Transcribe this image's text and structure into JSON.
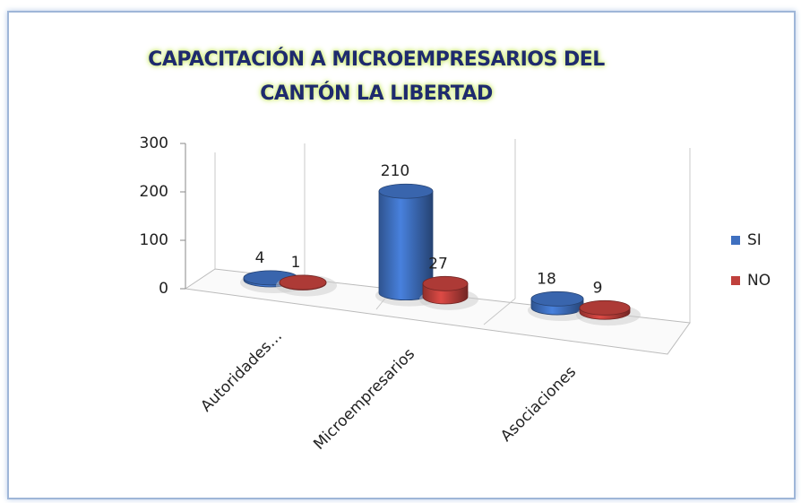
{
  "chart_data": {
    "type": "bar3d",
    "title": "CAPACITACIÓN A MICROEMPRESARIOS DEL CANTÓN LA LIBERTAD",
    "categories": [
      "Autoridades…",
      "Microempresarios",
      "Asociaciones"
    ],
    "series": [
      {
        "name": "SI",
        "color": "#3f70c0",
        "values": [
          4,
          210,
          18
        ]
      },
      {
        "name": "NO",
        "color": "#c0403c",
        "values": [
          1,
          27,
          9
        ]
      }
    ],
    "ylim": [
      0,
      300
    ],
    "yticks": [
      0,
      100,
      200,
      300
    ],
    "grid": false,
    "legend": "right"
  }
}
